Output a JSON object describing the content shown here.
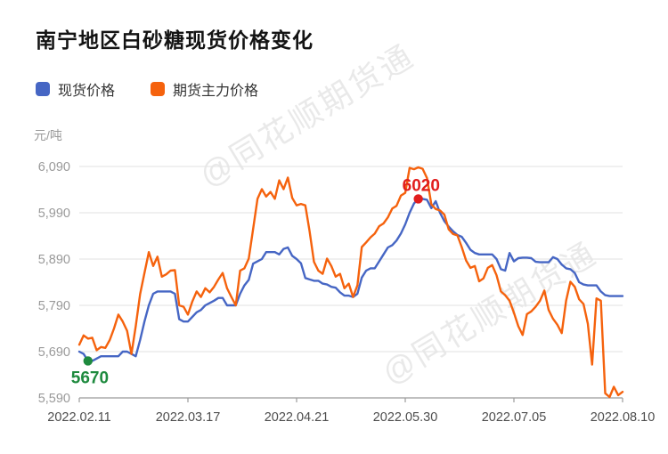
{
  "title": "南宁地区白砂糖现货价格变化",
  "y_unit": "元/吨",
  "watermark": {
    "text": "@同花顺期货通"
  },
  "legend": {
    "spot_label": "现货价格",
    "spot_color": "#4666c4",
    "futures_label": "期货主力价格",
    "futures_color": "#f5620d"
  },
  "chart_data": {
    "type": "line",
    "title": "南宁地区白砂糖现货价格变化",
    "ylabel": "元/吨",
    "ylim": [
      5590,
      6090
    ],
    "grid": true,
    "legend_position": "top-left",
    "x_tick_labels": [
      "2022.02.11",
      "2022.03.17",
      "2022.04.21",
      "2022.05.30",
      "2022.07.05",
      "2022.08.10"
    ],
    "y_ticks": [
      5590,
      5690,
      5790,
      5890,
      5990,
      6090
    ],
    "y_tick_labels": [
      "5,590",
      "5,690",
      "5,790",
      "5,890",
      "5,990",
      "6,090"
    ],
    "series": [
      {
        "name": "现货价格",
        "color": "#4666c4",
        "values": [
          5690,
          5685,
          5670,
          5670,
          5675,
          5680,
          5680,
          5680,
          5680,
          5680,
          5690,
          5690,
          5685,
          5680,
          5715,
          5755,
          5790,
          5815,
          5820,
          5820,
          5820,
          5820,
          5815,
          5760,
          5755,
          5755,
          5765,
          5775,
          5780,
          5790,
          5795,
          5800,
          5806,
          5806,
          5790,
          5790,
          5790,
          5815,
          5833,
          5845,
          5880,
          5885,
          5890,
          5905,
          5905,
          5905,
          5900,
          5912,
          5915,
          5897,
          5890,
          5881,
          5849,
          5846,
          5843,
          5843,
          5837,
          5835,
          5830,
          5828,
          5818,
          5811,
          5811,
          5808,
          5815,
          5850,
          5865,
          5870,
          5870,
          5885,
          5900,
          5915,
          5920,
          5930,
          5945,
          5965,
          5990,
          6010,
          6020,
          6020,
          6018,
          6000,
          6015,
          5990,
          5972,
          5960,
          5950,
          5942,
          5938,
          5925,
          5910,
          5903,
          5900,
          5900,
          5900,
          5900,
          5890,
          5868,
          5865,
          5903,
          5885,
          5892,
          5893,
          5893,
          5892,
          5884,
          5883,
          5883,
          5883,
          5894,
          5890,
          5878,
          5870,
          5868,
          5860,
          5840,
          5835,
          5833,
          5833,
          5833,
          5820,
          5812,
          5810,
          5810,
          5810,
          5810
        ]
      },
      {
        "name": "期货主力价格",
        "color": "#f5620d",
        "values": [
          5705,
          5725,
          5718,
          5720,
          5693,
          5700,
          5698,
          5715,
          5740,
          5770,
          5755,
          5735,
          5685,
          5745,
          5814,
          5860,
          5905,
          5875,
          5895,
          5852,
          5857,
          5865,
          5866,
          5790,
          5787,
          5770,
          5798,
          5820,
          5808,
          5827,
          5818,
          5830,
          5846,
          5860,
          5827,
          5808,
          5790,
          5865,
          5870,
          5891,
          5955,
          6020,
          6041,
          6025,
          6035,
          6020,
          6060,
          6041,
          6066,
          6022,
          6006,
          6009,
          6006,
          5950,
          5884,
          5865,
          5858,
          5891,
          5875,
          5852,
          5858,
          5827,
          5837,
          5808,
          5833,
          5916,
          5926,
          5937,
          5945,
          5961,
          5967,
          5980,
          5999,
          6005,
          6027,
          6033,
          6087,
          6084,
          6088,
          6085,
          6065,
          6008,
          5998,
          5995,
          5986,
          5954,
          5944,
          5941,
          5916,
          5887,
          5871,
          5875,
          5842,
          5848,
          5871,
          5877,
          5855,
          5820,
          5812,
          5800,
          5774,
          5745,
          5726,
          5771,
          5777,
          5787,
          5800,
          5822,
          5780,
          5761,
          5748,
          5730,
          5800,
          5841,
          5830,
          5803,
          5793,
          5750,
          5662,
          5805,
          5800,
          5600,
          5592,
          5614,
          5596,
          5603
        ]
      }
    ],
    "annotations": [
      {
        "series": 0,
        "index": 2,
        "value": 5670,
        "label": "5670",
        "color": "#1e8a3e",
        "placement": "below-left"
      },
      {
        "series": 0,
        "index": 78,
        "value": 6020,
        "label": "6020",
        "color": "#e11d1d",
        "placement": "above-left"
      }
    ]
  }
}
